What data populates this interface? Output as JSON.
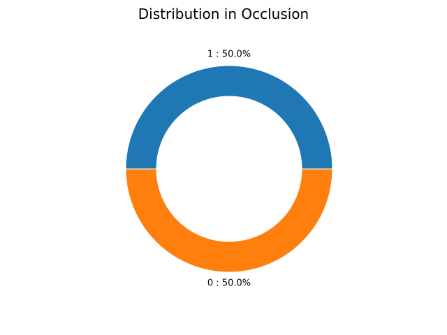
{
  "chart_data": {
    "type": "pie",
    "donut": true,
    "title": "Distribution in Occlusion",
    "slices": [
      {
        "label": "1",
        "value": 50.0,
        "text": "1 : 50.0%",
        "color": "#1f77b4"
      },
      {
        "label": "0",
        "value": 50.0,
        "text": "0 : 50.0%",
        "color": "#ff7f0e"
      }
    ],
    "start_angle_deg": 0,
    "direction": "counterclockwise",
    "legend": "none"
  }
}
